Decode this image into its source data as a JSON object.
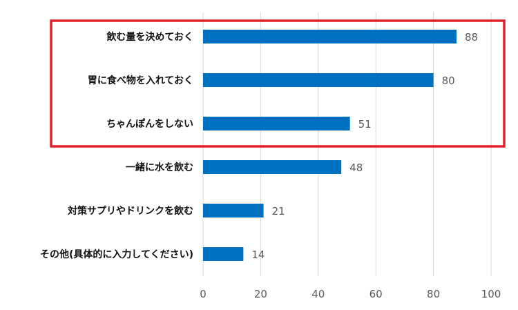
{
  "chart_data": {
    "type": "bar",
    "orientation": "horizontal",
    "categories": [
      "飲む量を決めておく",
      "胃に食べ物を入れておく",
      "ちゃんぽんをしない",
      "一緒に水を飲む",
      "対策サプリやドリンクを飲む",
      "その他(具体的に入力してください)"
    ],
    "values": [
      88,
      80,
      51,
      48,
      21,
      14
    ],
    "xlim": [
      0,
      100
    ],
    "x_ticks": [
      0,
      20,
      40,
      60,
      80,
      100
    ],
    "grid": "vertical",
    "bar_color": "#0070C0",
    "highlight": {
      "categories": [
        "飲む量を決めておく",
        "胃に食べ物を入れておく",
        "ちゃんぽんをしない"
      ],
      "color": "#E0202A"
    }
  }
}
